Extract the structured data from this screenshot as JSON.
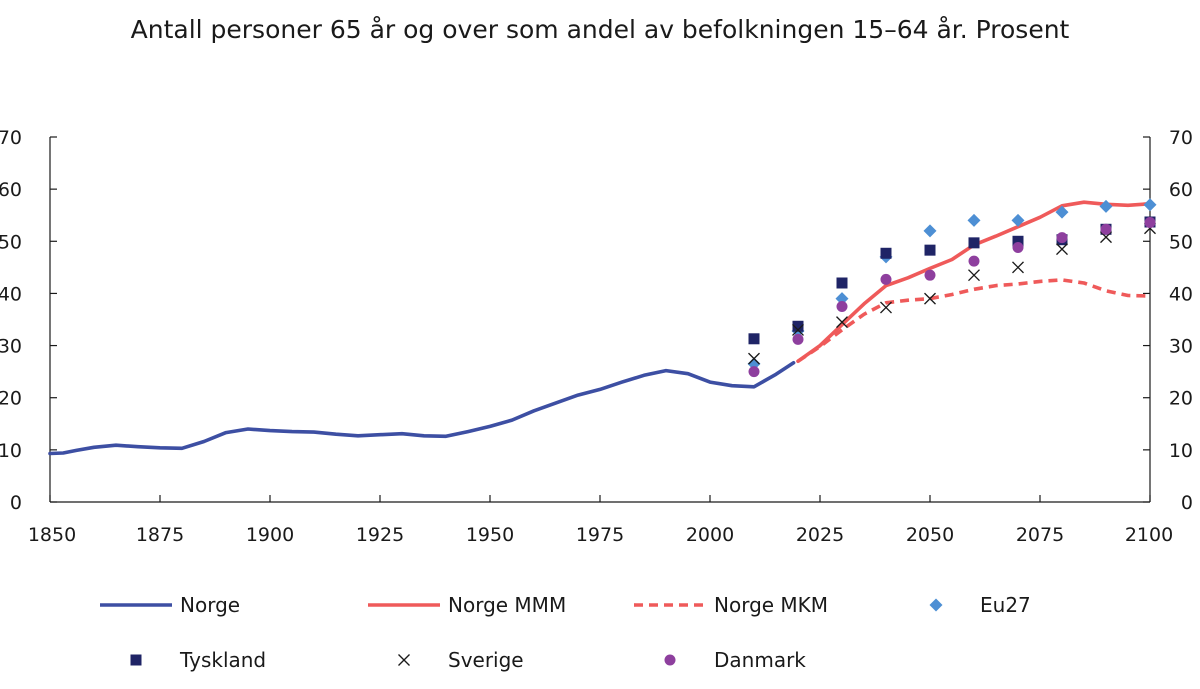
{
  "chart_data": {
    "type": "line",
    "title": "Antall personer 65 år og over som andel av befolkningen 15–64 år. Prosent",
    "xlabel": "",
    "ylabel": "",
    "xlim": [
      1850,
      2100
    ],
    "ylim": [
      0,
      70
    ],
    "x_ticks": [
      "1850",
      "1875",
      "1900",
      "1925",
      "1950",
      "1975",
      "2000",
      "2025",
      "2050",
      "2075",
      "2100"
    ],
    "y_ticks": [
      "0",
      "10",
      "20",
      "30",
      "40",
      "50",
      "60",
      "70"
    ],
    "grid": false,
    "legend_position": "bottom",
    "series": [
      {
        "name": "Norge",
        "kind": "line",
        "style": "solid",
        "color": "#3d4fa3",
        "x": [
          1850,
          1853,
          1856,
          1860,
          1865,
          1870,
          1875,
          1880,
          1885,
          1890,
          1895,
          1900,
          1905,
          1910,
          1915,
          1920,
          1925,
          1930,
          1935,
          1940,
          1945,
          1950,
          1955,
          1960,
          1965,
          1970,
          1975,
          1980,
          1985,
          1990,
          1995,
          2000,
          2005,
          2010,
          2015,
          2019
        ],
        "y": [
          9.3,
          9.4,
          9.9,
          10.5,
          10.9,
          10.6,
          10.4,
          10.3,
          11.6,
          13.3,
          14.0,
          13.7,
          13.5,
          13.4,
          13.0,
          12.7,
          12.9,
          13.1,
          12.7,
          12.6,
          13.5,
          14.5,
          15.7,
          17.5,
          19.0,
          20.5,
          21.6,
          23.0,
          24.3,
          25.2,
          24.6,
          23.0,
          22.3,
          22.1,
          24.5,
          26.7
        ]
      },
      {
        "name": "Norge MMM",
        "kind": "line",
        "style": "solid",
        "color": "#ef5a5a",
        "x": [
          2020,
          2025,
          2030,
          2035,
          2040,
          2045,
          2050,
          2055,
          2060,
          2065,
          2070,
          2075,
          2080,
          2085,
          2090,
          2095,
          2100
        ],
        "y": [
          27.0,
          30.0,
          34.0,
          38.0,
          41.5,
          43.0,
          44.8,
          46.5,
          49.3,
          51.0,
          52.8,
          54.6,
          56.8,
          57.5,
          57.1,
          56.9,
          57.2
        ]
      },
      {
        "name": "Norge MKM",
        "kind": "line",
        "style": "dashed",
        "color": "#ef5a5a",
        "x": [
          2020,
          2025,
          2030,
          2035,
          2040,
          2045,
          2050,
          2055,
          2060,
          2065,
          2070,
          2075,
          2080,
          2085,
          2090,
          2095,
          2100
        ],
        "y": [
          27.0,
          29.8,
          33.0,
          36.0,
          38.2,
          38.7,
          39.0,
          39.8,
          40.8,
          41.5,
          41.8,
          42.3,
          42.6,
          42.0,
          40.5,
          39.6,
          39.5
        ]
      },
      {
        "name": "Eu27",
        "kind": "marker",
        "marker": "diamond",
        "color": "#4d8fd4",
        "x": [
          2010,
          2020,
          2030,
          2040,
          2050,
          2060,
          2070,
          2080,
          2090,
          2100
        ],
        "y": [
          26.5,
          32.8,
          39.0,
          47.0,
          52.0,
          54.0,
          54.0,
          55.6,
          56.7,
          57.0
        ]
      },
      {
        "name": "Tyskland",
        "kind": "marker",
        "marker": "square",
        "color": "#1f2466",
        "x": [
          2010,
          2020,
          2030,
          2040,
          2050,
          2060,
          2070,
          2080,
          2090,
          2100
        ],
        "y": [
          31.3,
          33.7,
          42.0,
          47.7,
          48.3,
          49.7,
          50.0,
          50.3,
          52.3,
          53.7
        ]
      },
      {
        "name": "Sverige",
        "kind": "marker",
        "marker": "x",
        "color": "#1a1a1a",
        "x": [
          2010,
          2020,
          2030,
          2040,
          2050,
          2060,
          2070,
          2080,
          2090,
          2100
        ],
        "y": [
          27.5,
          33.0,
          34.5,
          37.3,
          39.0,
          43.5,
          45.0,
          48.5,
          50.8,
          52.5
        ]
      },
      {
        "name": "Danmark",
        "kind": "marker",
        "marker": "circle",
        "color": "#8e3f9e",
        "x": [
          2010,
          2020,
          2030,
          2040,
          2050,
          2060,
          2070,
          2080,
          2090,
          2100
        ],
        "y": [
          25.0,
          31.2,
          37.5,
          42.7,
          43.5,
          46.2,
          48.8,
          50.7,
          52.3,
          53.6
        ]
      }
    ]
  }
}
